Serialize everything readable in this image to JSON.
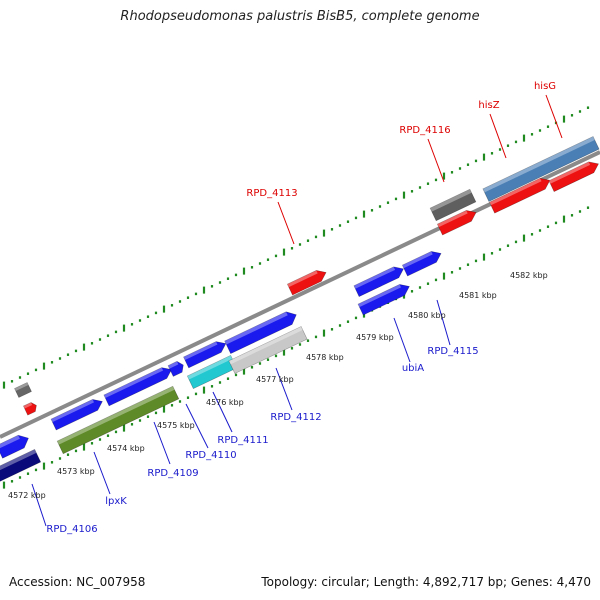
{
  "title": "Rhodopseudomonas palustris BisB5, complete genome",
  "footer": {
    "accession": "Accession: NC_007958",
    "topology": "Topology: circular; Length: 4,892,717 bp; Genes: 4,470"
  },
  "colors": {
    "backbone": "#8a8a8a",
    "tick": "#1f8a1f",
    "label_top": "#dd0000",
    "label_bottom": "#1a1acc"
  },
  "scale_labels": [
    "4572 kbp",
    "4573 kbp",
    "4574 kbp",
    "4575 kbp",
    "4576 kbp",
    "4577 kbp",
    "4578 kbp",
    "4579 kbp",
    "4580 kbp",
    "4581 kbp",
    "4582 kbp"
  ],
  "gene_labels_top": [
    "RPD_4113",
    "RPD_4116",
    "hisZ",
    "hisG"
  ],
  "gene_labels_bottom": [
    "RPD_4106",
    "lpxK",
    "RPD_4109",
    "RPD_4110",
    "RPD_4111",
    "RPD_4112",
    "ubiA",
    "RPD_4115"
  ]
}
